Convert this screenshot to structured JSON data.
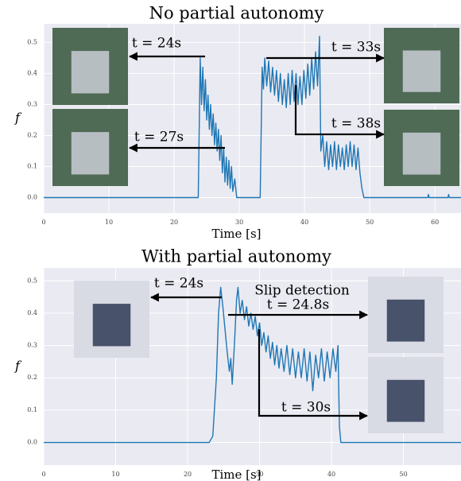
{
  "chart_data": [
    {
      "type": "line",
      "title": "No partial autonomy",
      "x_label": "Time [s]",
      "y_label": "f",
      "xlim": [
        0,
        64
      ],
      "ylim": [
        -0.05,
        0.56
      ],
      "grid": true,
      "xticks": [
        0,
        10,
        20,
        30,
        40,
        50,
        60
      ],
      "yticks": [
        {
          "value": 0,
          "label": "0.0"
        },
        {
          "value": 0.1,
          "label": "0.1"
        },
        {
          "value": 0.2,
          "label": "0.2"
        },
        {
          "value": 0.3,
          "label": "0.3"
        },
        {
          "value": 0.4,
          "label": "0.4"
        },
        {
          "value": 0.5,
          "label": "0.5"
        }
      ],
      "x": [
        0,
        23.7,
        24.0,
        24.2,
        24.4,
        24.6,
        24.8,
        25.0,
        25.2,
        25.4,
        25.6,
        25.8,
        26.0,
        26.2,
        26.4,
        26.6,
        26.8,
        27.0,
        27.2,
        27.4,
        27.6,
        27.8,
        28.0,
        28.2,
        28.4,
        28.6,
        28.8,
        29.0,
        29.3,
        29.6,
        33.2,
        33.5,
        33.7,
        33.9,
        34.2,
        34.5,
        34.8,
        35.1,
        35.4,
        35.7,
        36.0,
        36.3,
        36.6,
        36.9,
        37.2,
        37.5,
        37.8,
        38.1,
        38.4,
        38.7,
        39.0,
        39.3,
        39.6,
        39.9,
        40.2,
        40.5,
        40.8,
        41.1,
        41.4,
        41.7,
        42.0,
        42.3,
        42.5,
        42.8,
        43.1,
        43.4,
        43.7,
        44.0,
        44.3,
        44.6,
        44.9,
        45.2,
        45.5,
        45.8,
        46.1,
        46.4,
        46.7,
        47.0,
        47.3,
        47.6,
        47.9,
        48.2,
        48.5,
        48.8,
        49.1,
        58.9,
        59.0,
        59.1,
        62.0,
        62.1,
        62.2,
        64
      ],
      "series": [
        {
          "color": "#1f77b4",
          "values": [
            0,
            0,
            0.45,
            0.3,
            0.42,
            0.28,
            0.38,
            0.25,
            0.33,
            0.22,
            0.3,
            0.2,
            0.27,
            0.17,
            0.24,
            0.15,
            0.22,
            0.12,
            0.2,
            0.08,
            0.16,
            0.05,
            0.13,
            0.04,
            0.12,
            0.03,
            0.1,
            0.02,
            0.06,
            0,
            0,
            0.42,
            0.35,
            0.45,
            0.36,
            0.44,
            0.34,
            0.42,
            0.33,
            0.41,
            0.31,
            0.4,
            0.3,
            0.38,
            0.29,
            0.4,
            0.3,
            0.41,
            0.31,
            0.4,
            0.3,
            0.39,
            0.3,
            0.41,
            0.32,
            0.43,
            0.33,
            0.45,
            0.35,
            0.47,
            0.36,
            0.52,
            0.15,
            0.2,
            0.1,
            0.18,
            0.09,
            0.17,
            0.1,
            0.18,
            0.09,
            0.17,
            0.1,
            0.16,
            0.09,
            0.17,
            0.1,
            0.18,
            0.1,
            0.17,
            0.09,
            0.16,
            0.08,
            0.03,
            0,
            0,
            0.01,
            0,
            0,
            0.01,
            0,
            0
          ]
        }
      ],
      "annotations": [
        {
          "text": "t = 24s"
        },
        {
          "text": "t = 27s"
        },
        {
          "text": "t = 33s"
        },
        {
          "text": "t = 38s"
        }
      ]
    },
    {
      "type": "line",
      "title": "With partial autonomy",
      "x_label": "Time [s]",
      "y_label": "f",
      "xlim": [
        0,
        58
      ],
      "ylim": [
        -0.07,
        0.54
      ],
      "grid": true,
      "xticks": [
        0,
        10,
        20,
        30,
        40,
        50
      ],
      "yticks": [
        {
          "value": 0,
          "label": "0.0"
        },
        {
          "value": 0.1,
          "label": "0.1"
        },
        {
          "value": 0.2,
          "label": "0.2"
        },
        {
          "value": 0.3,
          "label": "0.3"
        },
        {
          "value": 0.4,
          "label": "0.4"
        },
        {
          "value": 0.5,
          "label": "0.5"
        }
      ],
      "x": [
        0,
        23.0,
        23.5,
        24.0,
        24.3,
        24.6,
        24.9,
        25.2,
        25.5,
        25.8,
        26.0,
        26.2,
        26.5,
        26.8,
        27.0,
        27.3,
        27.6,
        27.9,
        28.2,
        28.5,
        28.8,
        29.1,
        29.4,
        29.7,
        30.0,
        30.3,
        30.6,
        30.9,
        31.2,
        31.5,
        31.8,
        32.1,
        32.4,
        32.7,
        33.0,
        33.4,
        33.8,
        34.2,
        34.6,
        35.0,
        35.4,
        35.8,
        36.2,
        36.6,
        37.0,
        37.4,
        37.8,
        38.2,
        38.6,
        39.0,
        39.4,
        39.8,
        40.2,
        40.6,
        40.9,
        41.1,
        41.3,
        58
      ],
      "series": [
        {
          "color": "#1f77b4",
          "values": [
            0,
            0,
            0.02,
            0.2,
            0.4,
            0.48,
            0.42,
            0.35,
            0.28,
            0.22,
            0.26,
            0.18,
            0.3,
            0.44,
            0.48,
            0.4,
            0.44,
            0.38,
            0.42,
            0.36,
            0.4,
            0.35,
            0.39,
            0.33,
            0.37,
            0.3,
            0.34,
            0.28,
            0.33,
            0.26,
            0.31,
            0.24,
            0.3,
            0.23,
            0.29,
            0.22,
            0.3,
            0.21,
            0.29,
            0.2,
            0.28,
            0.2,
            0.29,
            0.19,
            0.28,
            0.16,
            0.27,
            0.2,
            0.29,
            0.19,
            0.28,
            0.2,
            0.29,
            0.22,
            0.3,
            0.05,
            0,
            0
          ]
        }
      ],
      "annotations": [
        {
          "text": "t = 24s"
        },
        {
          "text": "Slip detection"
        },
        {
          "text": "t = 24.8s"
        },
        {
          "text": "t = 30s"
        }
      ]
    }
  ]
}
